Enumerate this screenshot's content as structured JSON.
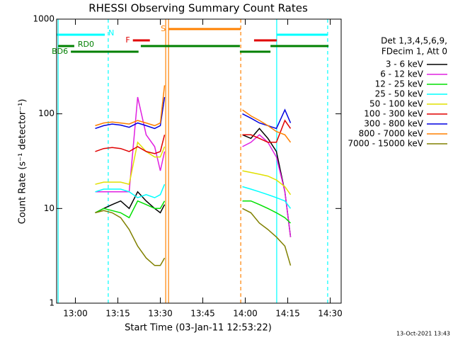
{
  "chart_data": {
    "type": "line",
    "title": "RHESSI Observing Summary Count Rates",
    "xlabel": "Start Time (03-Jan-11 12:53:22)",
    "ylabel": "Count Rate (s⁻¹ detector⁻¹)",
    "legend_header": [
      "Det 1,3,4,5,6,9,",
      "FDecim 1, Att 0"
    ],
    "footer": "13-Oct-2021 13:43",
    "log_y": true,
    "xlim": [
      773.37,
      873.87
    ],
    "ylim": [
      1,
      1000
    ],
    "xticks": [
      {
        "value": 780,
        "label": "13:00"
      },
      {
        "value": 795,
        "label": "13:15"
      },
      {
        "value": 810,
        "label": "13:30"
      },
      {
        "value": 825,
        "label": "13:45"
      },
      {
        "value": 840,
        "label": "14:00"
      },
      {
        "value": 855,
        "label": "14:15"
      },
      {
        "value": 870,
        "label": "14:30"
      }
    ],
    "yticks": [
      1,
      10,
      100,
      1000
    ],
    "x": [
      787,
      790,
      793,
      796,
      799,
      802,
      805,
      808,
      810,
      811.5,
      825,
      839,
      842,
      845,
      848,
      851,
      854,
      856
    ],
    "series": [
      {
        "name": "3 - 6 keV",
        "color": "#000000",
        "values": [
          9,
          10,
          11,
          12,
          10,
          15,
          12,
          10,
          9,
          11,
          null,
          60,
          55,
          70,
          55,
          40,
          15,
          5
        ]
      },
      {
        "name": "6 - 12 keV",
        "color": "#e020e0",
        "values": [
          15,
          15,
          15,
          15,
          15,
          150,
          60,
          45,
          25,
          40,
          null,
          45,
          50,
          60,
          50,
          35,
          15,
          5
        ]
      },
      {
        "name": "12 - 25 keV",
        "color": "#00e000",
        "values": [
          9,
          10,
          9.5,
          9,
          8,
          12,
          11,
          10,
          10,
          12,
          null,
          12,
          12,
          11,
          10,
          9,
          8,
          7
        ]
      },
      {
        "name": "25 - 50 keV",
        "color": "#00ffff",
        "values": [
          15,
          16,
          16,
          16,
          15,
          13,
          14,
          13,
          14,
          18,
          null,
          17,
          16,
          15,
          14,
          13,
          12,
          10
        ]
      },
      {
        "name": "50 - 100 keV",
        "color": "#e0e000",
        "values": [
          18,
          19,
          19,
          19,
          18,
          50,
          40,
          35,
          35,
          45,
          null,
          25,
          24,
          23,
          22,
          20,
          17,
          14
        ]
      },
      {
        "name": "100 - 300 keV",
        "color": "#e00000",
        "values": [
          40,
          43,
          44,
          43,
          40,
          45,
          40,
          38,
          40,
          60,
          null,
          60,
          60,
          55,
          50,
          50,
          85,
          70
        ]
      },
      {
        "name": "300 - 800 keV",
        "color": "#0000e0",
        "values": [
          70,
          75,
          78,
          76,
          72,
          80,
          75,
          70,
          75,
          150,
          null,
          100,
          90,
          80,
          75,
          70,
          110,
          80
        ]
      },
      {
        "name": "800 - 7000 keV",
        "color": "#ff8000",
        "values": [
          75,
          80,
          82,
          80,
          78,
          85,
          80,
          75,
          80,
          200,
          null,
          110,
          95,
          85,
          75,
          65,
          60,
          50
        ]
      },
      {
        "name": "7000 - 15000 keV",
        "color": "#808000",
        "values": [
          9,
          9.5,
          9,
          8,
          6,
          4,
          3,
          2.5,
          2.5,
          3,
          null,
          10,
          9,
          7,
          6,
          5,
          4,
          2.5
        ]
      }
    ],
    "flags": [
      {
        "label": "S",
        "color": "#ff8000",
        "segments": [
          [
            812.9,
            838.4
          ]
        ]
      },
      {
        "label": "N",
        "color": "#00ffff",
        "segments": [
          [
            773.4,
            790.4
          ],
          [
            851.1,
            869.1
          ]
        ]
      },
      {
        "label": "F",
        "color": "#e00000",
        "segments": [
          [
            800.3,
            806.3
          ],
          [
            843.1,
            851.1
          ]
        ]
      },
      {
        "label": "RD0",
        "color": "#008000",
        "segments": [
          [
            773.9,
            779.6
          ],
          [
            803.1,
            838.1
          ],
          [
            848.9,
            869.4
          ]
        ]
      },
      {
        "label": "BD6",
        "color": "#008000",
        "segments": [
          [
            778.4,
            802.3
          ],
          [
            838.1,
            848.9
          ]
        ]
      }
    ],
    "vlines": [
      {
        "x": 773.9,
        "color": "#00ffff",
        "dashed": false
      },
      {
        "x": 791.6,
        "color": "#00ffff",
        "dashed": true
      },
      {
        "x": 851.1,
        "color": "#00ffff",
        "dashed": false
      },
      {
        "x": 869.1,
        "color": "#00ffff",
        "dashed": true
      },
      {
        "x": 811.9,
        "color": "#ff8000",
        "dashed": false
      },
      {
        "x": 812.9,
        "color": "#ff8000",
        "dashed": false
      },
      {
        "x": 838.4,
        "color": "#ff8000",
        "dashed": true
      }
    ]
  }
}
